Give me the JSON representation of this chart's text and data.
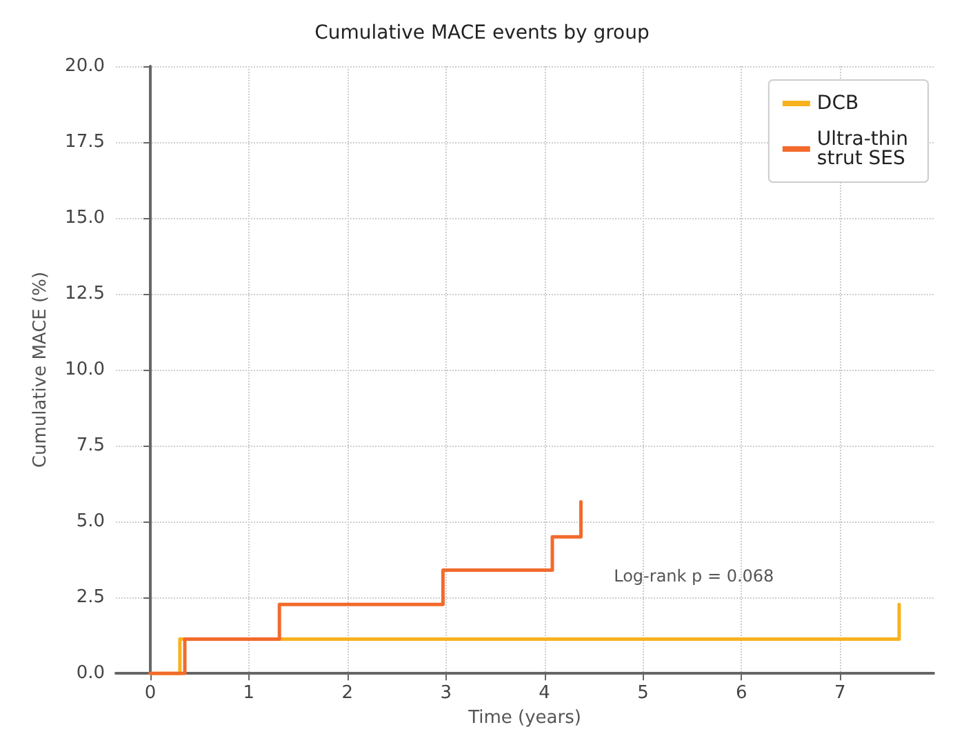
{
  "chart_data": {
    "type": "step",
    "title": "Cumulative MACE events by group",
    "xlabel": "Time (years)",
    "ylabel": "Cumulative MACE (%)",
    "series": [
      {
        "name": "DCB",
        "color": "#f7b21e",
        "x": [
          0,
          0.3,
          7.6,
          7.6
        ],
        "values": [
          0,
          1.13,
          1.13,
          2.27
        ]
      },
      {
        "name": "Ultra-thin strut SES",
        "color": "#f26a2c",
        "x": [
          0,
          0.35,
          1.31,
          2.97,
          4.08,
          4.37,
          4.37
        ],
        "values": [
          0,
          1.13,
          2.27,
          3.4,
          4.5,
          4.5,
          5.65
        ]
      }
    ],
    "xlim": [
      -0.35,
      7.95
    ],
    "xticks": [
      0,
      1,
      2,
      3,
      4,
      5,
      6,
      7
    ],
    "ylim": [
      0,
      20
    ],
    "yticks": [
      {
        "value": 0,
        "label": "0.0"
      },
      {
        "value": 2.5,
        "label": "2.5"
      },
      {
        "value": 5,
        "label": "5.0"
      },
      {
        "value": 7.5,
        "label": "7.5"
      },
      {
        "value": 10,
        "label": "10.0"
      },
      {
        "value": 12.5,
        "label": "12.5"
      },
      {
        "value": 15,
        "label": "15.0"
      },
      {
        "value": 17.5,
        "label": "17.5"
      },
      {
        "value": 20,
        "label": "20.0"
      }
    ],
    "annotations": [
      "Log-rank p = 0.068"
    ],
    "grid": true,
    "legend": "top right",
    "line_style": "solid"
  }
}
